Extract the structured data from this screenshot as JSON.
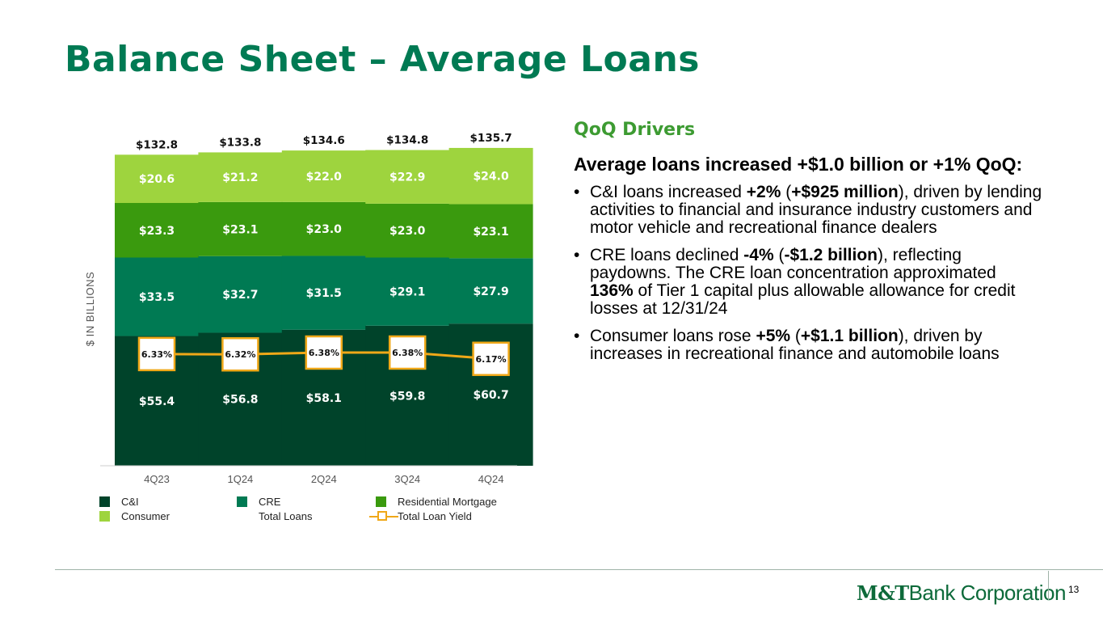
{
  "title": "Balance Sheet – Average Loans",
  "chart_data": {
    "type": "bar",
    "stacked": true,
    "ylabel": "$ IN BILLIONS",
    "categories": [
      "4Q23",
      "1Q24",
      "2Q24",
      "3Q24",
      "4Q24"
    ],
    "series": [
      {
        "name": "C&I",
        "color": "#00432a",
        "values": [
          55.4,
          56.8,
          58.1,
          59.8,
          60.7
        ],
        "labels": [
          "$55.4",
          "$56.8",
          "$58.1",
          "$59.8",
          "$60.7"
        ]
      },
      {
        "name": "CRE",
        "color": "#007a53",
        "values": [
          33.5,
          32.7,
          31.5,
          29.1,
          27.9
        ],
        "labels": [
          "$33.5",
          "$32.7",
          "$31.5",
          "$29.1",
          "$27.9"
        ]
      },
      {
        "name": "Residential Mortgage",
        "color": "#3a9a0e",
        "values": [
          23.3,
          23.1,
          23.0,
          23.0,
          23.1
        ],
        "labels": [
          "$23.3",
          "$23.1",
          "$23.0",
          "$23.0",
          "$23.1"
        ]
      },
      {
        "name": "Consumer",
        "color": "#9ed43e",
        "values": [
          20.6,
          21.2,
          22.0,
          22.9,
          24.0
        ],
        "labels": [
          "$20.6",
          "$21.2",
          "$22.0",
          "$22.9",
          "$24.0"
        ]
      }
    ],
    "totals": {
      "name": "Total Loans",
      "values": [
        132.8,
        133.8,
        134.6,
        134.8,
        135.7
      ],
      "labels": [
        "$132.8",
        "$133.8",
        "$134.6",
        "$134.8",
        "$135.7"
      ]
    },
    "yield_line": {
      "name": "Total Loan Yield",
      "color": "#f0a818",
      "values": [
        6.33,
        6.32,
        6.38,
        6.38,
        6.17
      ],
      "labels": [
        "6.33%",
        "6.32%",
        "6.38%",
        "6.38%",
        "6.17%"
      ]
    },
    "ylim": [
      0,
      145
    ],
    "grid": false,
    "legend_position": "bottom"
  },
  "legend": {
    "ci": "C&I",
    "cre": "CRE",
    "residential": "Residential Mortgage",
    "consumer": "Consumer",
    "total_loans": "Total Loans",
    "total_loan_yield": "Total Loan Yield"
  },
  "drivers": {
    "heading": "QoQ Drivers",
    "lead": "Average loans increased +$1.0 billion or +1% QoQ:",
    "bullet1": {
      "a": "C&I loans increased ",
      "b": "+2%",
      "c": " (",
      "d": "+$925 million",
      "e": "), driven by lending activities to financial and insurance industry customers and motor vehicle and recreational finance dealers"
    },
    "bullet2": {
      "a": "CRE loans declined ",
      "b": "-4%",
      "c": " (",
      "d": "-$1.2 billion",
      "e": "), reflecting paydowns. The CRE loan concentration approximated ",
      "f": "136%",
      "g": " of Tier 1 capital plus allowable allowance for credit losses at 12/31/24"
    },
    "bullet3": {
      "a": "Consumer loans rose ",
      "b": "+5%",
      "c": " (",
      "d": "+$1.1 billion",
      "e": "), driven by increases in recreational finance and automobile loans"
    }
  },
  "footer": {
    "logo_bold": "M&T",
    "logo_text": "Bank Corporation",
    "page_number": "13"
  }
}
